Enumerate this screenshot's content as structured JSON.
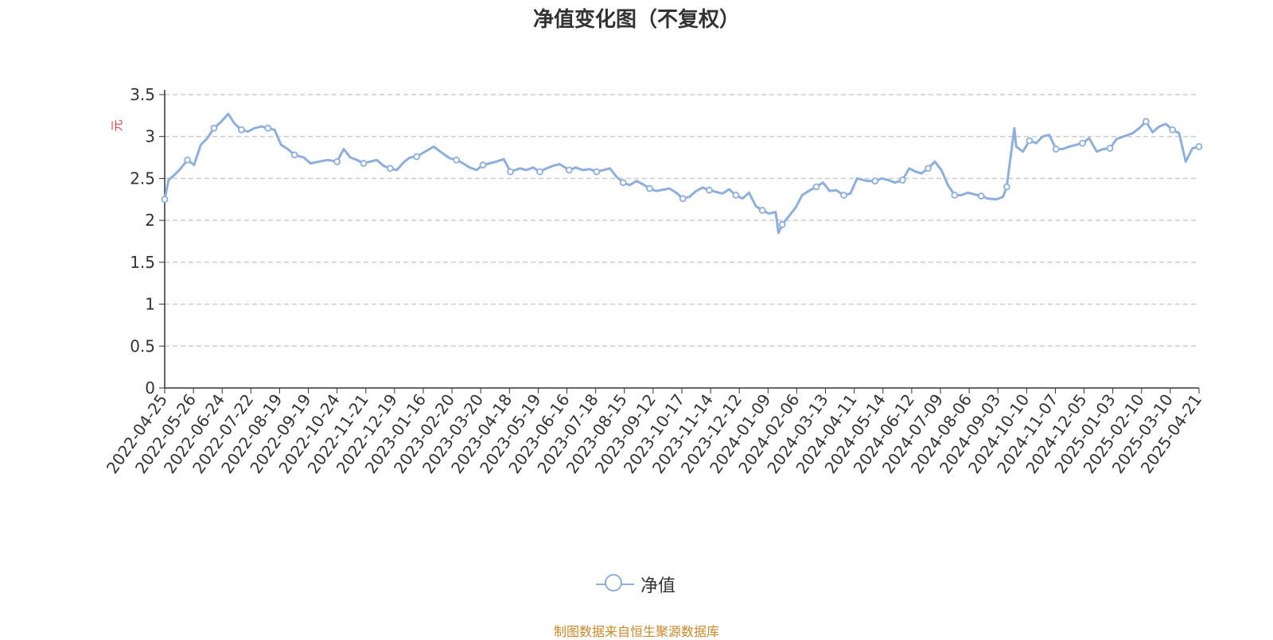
{
  "title": "净值变化图（不复权）",
  "legend": {
    "label": "净值"
  },
  "source_note": "制图数据来自恒生聚源数据库",
  "colors": {
    "series": "#8eaedc",
    "grid": "#cccccc",
    "axis": "#333333",
    "unit": "#e03c3c",
    "source": "#c9892b"
  },
  "chart_data": {
    "type": "line",
    "title": "净值变化图（不复权）",
    "ylabel": "元",
    "xlabel": "",
    "ylim": [
      0,
      3.5
    ],
    "y_ticks": [
      "0",
      "0.5",
      "1",
      "1.5",
      "2",
      "2.5",
      "3",
      "3.5"
    ],
    "grid": true,
    "legend_position": "bottom-center",
    "x_tick_labels": [
      "2022-04-25",
      "2022-05-26",
      "2022-06-24",
      "2022-07-22",
      "2022-08-19",
      "2022-09-19",
      "2022-10-24",
      "2022-11-21",
      "2022-12-19",
      "2023-01-16",
      "2023-02-20",
      "2023-03-20",
      "2023-04-18",
      "2023-05-19",
      "2023-06-16",
      "2023-07-18",
      "2023-08-15",
      "2023-09-12",
      "2023-10-17",
      "2023-11-14",
      "2023-12-12",
      "2024-01-09",
      "2024-02-06",
      "2024-03-13",
      "2024-04-11",
      "2024-05-14",
      "2024-06-12",
      "2024-07-09",
      "2024-08-06",
      "2024-09-03",
      "2024-10-10",
      "2024-11-07",
      "2024-12-05",
      "2025-01-03",
      "2025-02-10",
      "2025-03-10",
      "2025-04-21"
    ],
    "series": [
      {
        "name": "净值",
        "x": [
          "2022-04-25",
          "2022-04-29",
          "2022-05-06",
          "2022-05-12",
          "2022-05-19",
          "2022-05-26",
          "2022-06-02",
          "2022-06-09",
          "2022-06-16",
          "2022-06-24",
          "2022-07-01",
          "2022-07-08",
          "2022-07-15",
          "2022-07-22",
          "2022-07-29",
          "2022-08-05",
          "2022-08-12",
          "2022-08-19",
          "2022-08-26",
          "2022-09-02",
          "2022-09-09",
          "2022-09-19",
          "2022-09-26",
          "2022-10-14",
          "2022-10-24",
          "2022-10-31",
          "2022-11-07",
          "2022-11-14",
          "2022-11-21",
          "2022-11-28",
          "2022-12-05",
          "2022-12-12",
          "2022-12-19",
          "2022-12-26",
          "2023-01-03",
          "2023-01-09",
          "2023-01-16",
          "2023-02-03",
          "2023-02-10",
          "2023-02-20",
          "2023-02-27",
          "2023-03-06",
          "2023-03-13",
          "2023-03-20",
          "2023-03-27",
          "2023-04-03",
          "2023-04-10",
          "2023-04-18",
          "2023-04-25",
          "2023-05-05",
          "2023-05-12",
          "2023-05-19",
          "2023-05-26",
          "2023-06-02",
          "2023-06-09",
          "2023-06-16",
          "2023-06-26",
          "2023-07-03",
          "2023-07-10",
          "2023-07-18",
          "2023-07-25",
          "2023-08-01",
          "2023-08-08",
          "2023-08-15",
          "2023-08-22",
          "2023-08-29",
          "2023-09-05",
          "2023-09-12",
          "2023-09-19",
          "2023-09-26",
          "2023-10-10",
          "2023-10-17",
          "2023-10-24",
          "2023-10-31",
          "2023-11-07",
          "2023-11-14",
          "2023-11-21",
          "2023-11-28",
          "2023-12-05",
          "2023-12-12",
          "2023-12-19",
          "2023-12-26",
          "2024-01-02",
          "2024-01-09",
          "2024-01-16",
          "2024-01-23",
          "2024-01-30",
          "2024-02-02",
          "2024-02-06",
          "2024-02-20",
          "2024-02-27",
          "2024-03-05",
          "2024-03-13",
          "2024-03-20",
          "2024-03-27",
          "2024-04-03",
          "2024-04-11",
          "2024-04-18",
          "2024-04-25",
          "2024-05-06",
          "2024-05-14",
          "2024-05-21",
          "2024-05-28",
          "2024-06-04",
          "2024-06-12",
          "2024-06-19",
          "2024-06-26",
          "2024-07-02",
          "2024-07-09",
          "2024-07-16",
          "2024-07-23",
          "2024-07-30",
          "2024-08-06",
          "2024-08-13",
          "2024-08-20",
          "2024-08-27",
          "2024-09-03",
          "2024-09-10",
          "2024-09-19",
          "2024-09-26",
          "2024-09-30",
          "2024-10-08",
          "2024-10-10",
          "2024-10-17",
          "2024-10-24",
          "2024-10-31",
          "2024-11-07",
          "2024-11-14",
          "2024-11-21",
          "2024-11-28",
          "2024-12-05",
          "2024-12-12",
          "2024-12-19",
          "2024-12-26",
          "2025-01-03",
          "2025-01-10",
          "2025-01-17",
          "2025-01-24",
          "2025-02-10",
          "2025-02-17",
          "2025-02-24",
          "2025-03-03",
          "2025-03-10",
          "2025-03-17",
          "2025-03-24",
          "2025-03-31",
          "2025-04-07",
          "2025-04-14",
          "2025-04-21"
        ],
        "values": [
          2.25,
          2.48,
          2.55,
          2.62,
          2.72,
          2.66,
          2.9,
          2.98,
          3.1,
          3.18,
          3.27,
          3.15,
          3.08,
          3.06,
          3.1,
          3.12,
          3.1,
          3.08,
          2.9,
          2.85,
          2.78,
          2.75,
          2.68,
          2.72,
          2.7,
          2.85,
          2.75,
          2.72,
          2.68,
          2.7,
          2.72,
          2.65,
          2.62,
          2.6,
          2.7,
          2.75,
          2.76,
          2.88,
          2.82,
          2.74,
          2.72,
          2.68,
          2.63,
          2.6,
          2.66,
          2.68,
          2.7,
          2.73,
          2.58,
          2.62,
          2.6,
          2.63,
          2.58,
          2.62,
          2.65,
          2.67,
          2.6,
          2.63,
          2.6,
          2.61,
          2.58,
          2.6,
          2.62,
          2.52,
          2.45,
          2.42,
          2.47,
          2.43,
          2.38,
          2.35,
          2.38,
          2.33,
          2.26,
          2.28,
          2.35,
          2.39,
          2.36,
          2.34,
          2.32,
          2.37,
          2.3,
          2.26,
          2.33,
          2.17,
          2.12,
          2.08,
          2.1,
          1.85,
          1.95,
          2.15,
          2.3,
          2.35,
          2.4,
          2.45,
          2.35,
          2.36,
          2.3,
          2.32,
          2.5,
          2.47,
          2.47,
          2.5,
          2.48,
          2.45,
          2.48,
          2.62,
          2.58,
          2.56,
          2.62,
          2.7,
          2.6,
          2.42,
          2.3,
          2.3,
          2.33,
          2.31,
          2.29,
          2.26,
          2.25,
          2.28,
          2.4,
          3.1,
          2.88,
          2.82,
          2.95,
          2.92,
          3.0,
          3.02,
          2.85,
          2.85,
          2.88,
          2.9,
          2.92,
          2.98,
          2.82,
          2.85,
          2.86,
          2.97,
          3.04,
          3.1,
          3.18,
          3.05,
          3.12,
          3.15,
          3.08,
          3.04,
          2.7,
          2.86,
          2.88
        ]
      }
    ]
  }
}
